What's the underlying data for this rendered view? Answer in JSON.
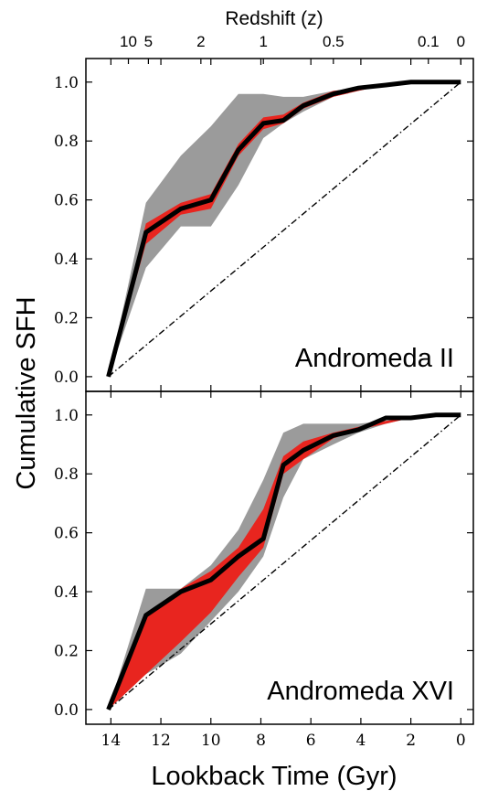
{
  "figure": {
    "top_axis_label": "Redshift (z)",
    "top_ticks": [
      {
        "label": "10",
        "t": 13.3
      },
      {
        "label": "5",
        "t": 12.5
      },
      {
        "label": "2",
        "t": 10.4
      },
      {
        "label": "1",
        "t": 7.9
      },
      {
        "label": "0.5",
        "t": 5.1
      },
      {
        "label": "0.1",
        "t": 1.3
      },
      {
        "label": "0",
        "t": 0
      }
    ],
    "xlabel": "Lookback Time (Gyr)",
    "ylabel": "Cumulative SFH",
    "x_ticks": [
      14,
      12,
      10,
      8,
      6,
      4,
      2,
      0
    ],
    "y_ticks": [
      0.0,
      0.2,
      0.4,
      0.6,
      0.8,
      1.0
    ],
    "xlim": [
      15,
      -0.5
    ],
    "ylim": [
      -0.05,
      1.08
    ],
    "colors": {
      "best_fit": "#000000",
      "red_band": "#e8251f",
      "gray_band": "#9b9b9b",
      "reference": "#000000"
    }
  },
  "chart_data": [
    {
      "type": "area",
      "panel_label": "Andromeda II",
      "reference_line": {
        "x": [
          14.1,
          0
        ],
        "y": [
          0.0,
          1.0
        ]
      },
      "best_fit": {
        "x": [
          14.1,
          12.6,
          11.2,
          10.0,
          8.9,
          7.9,
          7.1,
          6.3,
          5.1,
          4.1,
          3.0,
          2.0,
          1.0,
          0
        ],
        "y": [
          0.0,
          0.49,
          0.57,
          0.6,
          0.77,
          0.86,
          0.87,
          0.92,
          0.96,
          0.98,
          0.99,
          1.0,
          1.0,
          1.0
        ]
      },
      "red_band": {
        "x": [
          14.1,
          12.6,
          11.2,
          10.0,
          8.9,
          7.9,
          7.1,
          6.3,
          5.1,
          4.1,
          3.0,
          2.0,
          1.0,
          0
        ],
        "upper": [
          0.0,
          0.52,
          0.59,
          0.62,
          0.79,
          0.88,
          0.89,
          0.93,
          0.97,
          0.98,
          0.99,
          1.0,
          1.0,
          1.0
        ],
        "lower": [
          0.0,
          0.45,
          0.55,
          0.57,
          0.75,
          0.84,
          0.86,
          0.91,
          0.95,
          0.97,
          0.99,
          1.0,
          1.0,
          1.0
        ]
      },
      "gray_band": {
        "x": [
          14.1,
          12.6,
          11.2,
          10.0,
          8.9,
          7.9,
          7.1,
          6.3,
          5.1,
          4.1,
          3.0,
          2.0,
          1.0,
          0
        ],
        "upper": [
          0.0,
          0.59,
          0.75,
          0.85,
          0.96,
          0.96,
          0.95,
          0.95,
          0.97,
          0.98,
          0.99,
          1.0,
          1.0,
          1.0
        ],
        "lower": [
          0.0,
          0.37,
          0.51,
          0.51,
          0.65,
          0.81,
          0.86,
          0.9,
          0.95,
          0.97,
          0.99,
          1.0,
          1.0,
          1.0
        ]
      }
    },
    {
      "type": "area",
      "panel_label": "Andromeda XVI",
      "reference_line": {
        "x": [
          14.1,
          0
        ],
        "y": [
          0.0,
          1.0
        ]
      },
      "best_fit": {
        "x": [
          14.1,
          12.6,
          11.2,
          10.0,
          8.9,
          7.9,
          7.1,
          6.3,
          5.1,
          4.1,
          3.0,
          2.0,
          1.0,
          0
        ],
        "y": [
          0.0,
          0.32,
          0.4,
          0.44,
          0.52,
          0.58,
          0.83,
          0.88,
          0.93,
          0.95,
          0.99,
          0.99,
          1.0,
          1.0
        ]
      },
      "red_band": {
        "x": [
          14.1,
          12.6,
          11.2,
          10.0,
          8.9,
          7.9,
          7.1,
          6.3,
          5.1,
          4.1,
          3.0,
          2.0,
          1.0,
          0
        ],
        "upper": [
          0.0,
          0.31,
          0.41,
          0.47,
          0.55,
          0.68,
          0.86,
          0.91,
          0.94,
          0.96,
          0.98,
          0.99,
          1.0,
          1.0
        ],
        "lower": [
          0.0,
          0.12,
          0.23,
          0.33,
          0.45,
          0.55,
          0.8,
          0.85,
          0.92,
          0.95,
          0.97,
          0.99,
          1.0,
          1.0
        ]
      },
      "gray_band": {
        "x": [
          14.1,
          12.6,
          11.2,
          10.0,
          8.9,
          7.9,
          7.1,
          6.3,
          5.1,
          4.1,
          3.0,
          2.0,
          1.0,
          0
        ],
        "upper": [
          0.0,
          0.41,
          0.41,
          0.49,
          0.61,
          0.78,
          0.94,
          0.97,
          0.97,
          0.97,
          0.98,
          0.99,
          1.0,
          1.0
        ],
        "lower": [
          0.0,
          0.12,
          0.19,
          0.3,
          0.4,
          0.52,
          0.72,
          0.85,
          0.9,
          0.94,
          0.97,
          0.99,
          1.0,
          1.0
        ]
      }
    }
  ]
}
